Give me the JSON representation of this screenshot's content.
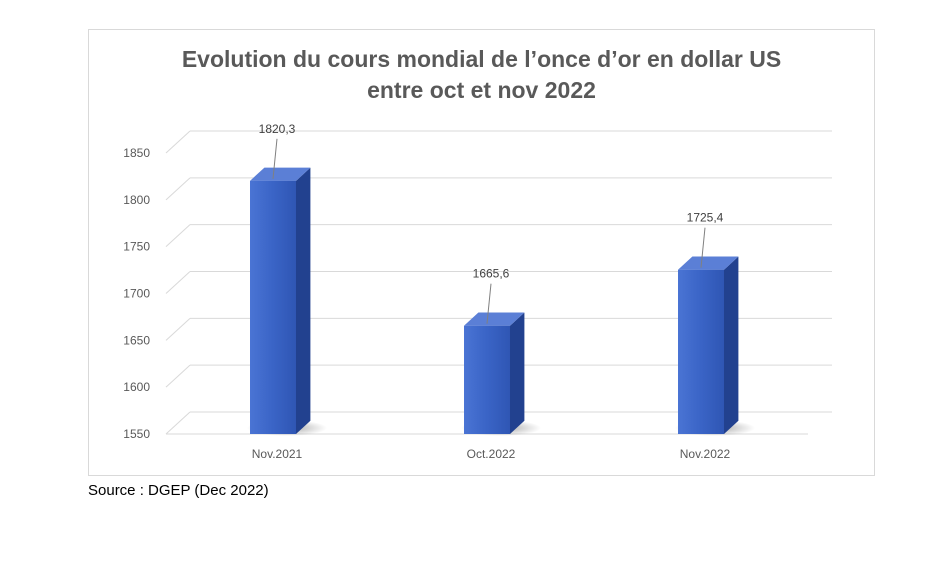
{
  "chart_data": {
    "type": "bar",
    "title_lines": [
      "Evolution du cours mondial de l’once d’or en dollar US",
      "entre oct et nov 2022"
    ],
    "categories": [
      "Nov.2021",
      "Oct.2022",
      "Nov.2022"
    ],
    "values": [
      1820.3,
      1665.6,
      1725.4
    ],
    "data_labels": [
      "1820,3",
      "1665,6",
      "1725,4"
    ],
    "yticks": [
      1550,
      1600,
      1650,
      1700,
      1750,
      1800,
      1850
    ],
    "ylim": [
      1550,
      1850
    ],
    "grid": true,
    "legend": "none",
    "colors": {
      "bar_front": "#3a64c6",
      "bar_side": "#22418f",
      "bar_top": "#5b7fd6",
      "grid": "#d9d9d9",
      "text": "#595959"
    }
  },
  "source": "Source : DGEP (Dec 2022)"
}
